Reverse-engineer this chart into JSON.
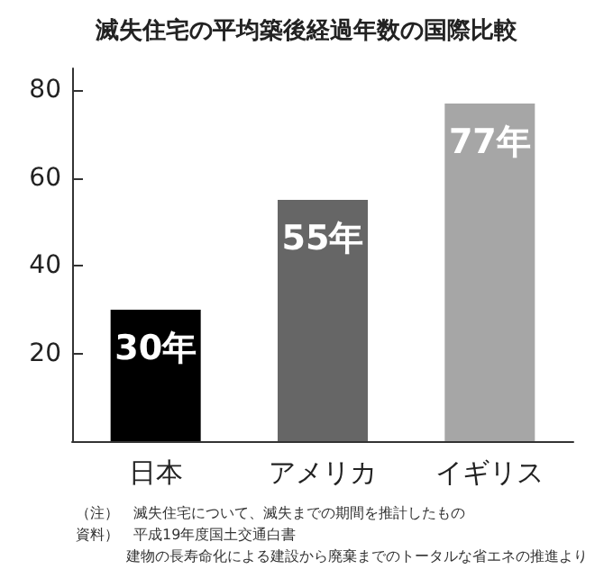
{
  "chart_data": {
    "type": "bar",
    "title": "滅失住宅の平均築後経過年数の国際比較",
    "categories": [
      "日本",
      "アメリカ",
      "イギリス"
    ],
    "values": [
      30,
      55,
      77
    ],
    "colors": [
      "#000000",
      "#666666",
      "#a6a6a6"
    ],
    "value_labels": [
      "30年",
      "55年",
      "77年"
    ],
    "ylim": [
      0,
      85
    ],
    "yticks": [
      20,
      40,
      60,
      80
    ],
    "grid": false,
    "annotations": [
      "（注）　滅失住宅について、滅失までの期間を推計したもの",
      "資料）　平成19年度国土交通白書",
      "建物の長寿命化による建設から廃棄までのトータルな省エネの推進より"
    ]
  }
}
